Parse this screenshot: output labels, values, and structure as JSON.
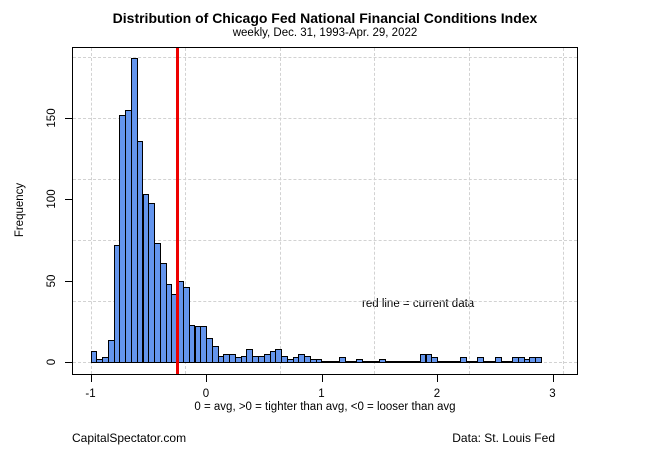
{
  "header": {
    "title": "Distribution of Chicago Fed National Financial Conditions Index",
    "subtitle": "weekly, Dec. 31, 1993-Apr. 29, 2022"
  },
  "chart_data": {
    "type": "bar",
    "subtype": "histogram",
    "title": "Distribution of Chicago Fed National Financial Conditions Index",
    "subtitle": "weekly, Dec. 31, 1993-Apr. 29, 2022",
    "xlabel": "0 = avg, >0 = tighter than avg, <0 = looser than avg",
    "ylabel": "Frequency",
    "bin_start": -1.0,
    "bin_width": 0.05,
    "frequencies": [
      7,
      2,
      3,
      14,
      72,
      152,
      155,
      187,
      136,
      103,
      98,
      73,
      61,
      48,
      42,
      50,
      46,
      23,
      22,
      22,
      15,
      10,
      4,
      5,
      5,
      3,
      4,
      8,
      4,
      4,
      5,
      7,
      8,
      4,
      2,
      3,
      5,
      4,
      2,
      2,
      1,
      1,
      1,
      3,
      1,
      1,
      2,
      1,
      1,
      1,
      2,
      1,
      1,
      1,
      1,
      1,
      1,
      5,
      5,
      3,
      1,
      1,
      1,
      1,
      3,
      1,
      1,
      3,
      1,
      1,
      3,
      1,
      1,
      3,
      3,
      2,
      3,
      3
    ],
    "x_ticks": [
      "-1",
      "0",
      "1",
      "2",
      "3"
    ],
    "x_tick_values": [
      -1,
      0,
      1,
      2,
      3
    ],
    "y_ticks": [
      "0",
      "50",
      "100",
      "150"
    ],
    "y_tick_values": [
      0,
      50,
      100,
      150
    ],
    "xlim": [
      -1.15,
      3.26
    ],
    "ylim": [
      -8,
      194
    ],
    "grid": "dashed",
    "legend_position": "none",
    "red_line_x": -0.26,
    "annotation": "red line = current data",
    "colors": {
      "bar_fill": "#6495ED",
      "bar_border": "#000000",
      "red_line": "#EE0000",
      "gridline": "#D2D2D2",
      "text": "#000000"
    }
  },
  "footer": {
    "left": "CapitalSpectator.com",
    "right": "Data: St. Louis Fed"
  }
}
